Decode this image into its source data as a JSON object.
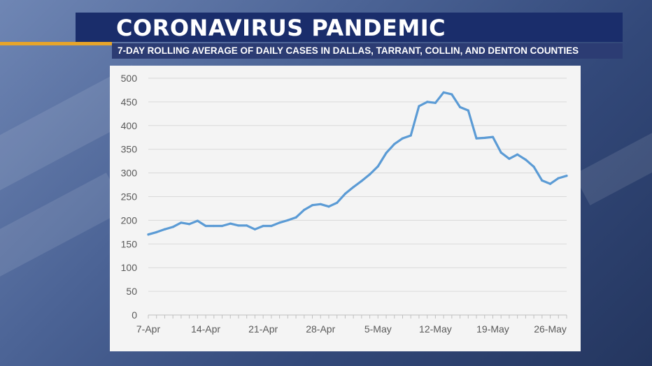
{
  "header": {
    "title": "CORONAVIRUS PANDEMIC",
    "subtitle": "7-DAY ROLLING AVERAGE OF DAILY CASES IN DALLAS, TARRANT, COLLIN, AND DENTON COUNTIES"
  },
  "colors": {
    "title_bar": "#1a2d6b",
    "accent": "#e7a52a",
    "line": "#5b9bd5"
  },
  "chart_data": {
    "type": "line",
    "title": "",
    "xlabel": "",
    "ylabel": "",
    "ylim": [
      0,
      500
    ],
    "y_ticks": [
      "0",
      "50",
      "100",
      "150",
      "200",
      "250",
      "300",
      "350",
      "400",
      "450",
      "500"
    ],
    "x_tick_labels": [
      "7-Apr",
      "14-Apr",
      "21-Apr",
      "28-Apr",
      "5-May",
      "12-May",
      "19-May",
      "26-May"
    ],
    "grid": true,
    "series": [
      {
        "x": [
          "2020-04-07",
          "2020-04-08",
          "2020-04-09",
          "2020-04-10",
          "2020-04-11",
          "2020-04-12",
          "2020-04-13",
          "2020-04-14",
          "2020-04-15",
          "2020-04-16",
          "2020-04-17",
          "2020-04-18",
          "2020-04-19",
          "2020-04-20",
          "2020-04-21",
          "2020-04-22",
          "2020-04-23",
          "2020-04-24",
          "2020-04-25",
          "2020-04-26",
          "2020-04-27",
          "2020-04-28",
          "2020-04-29",
          "2020-04-30",
          "2020-05-01",
          "2020-05-02",
          "2020-05-03",
          "2020-05-04",
          "2020-05-05",
          "2020-05-06",
          "2020-05-07",
          "2020-05-08",
          "2020-05-09",
          "2020-05-10",
          "2020-05-11",
          "2020-05-12",
          "2020-05-13",
          "2020-05-14",
          "2020-05-15",
          "2020-05-16",
          "2020-05-17",
          "2020-05-18",
          "2020-05-19",
          "2020-05-20",
          "2020-05-21",
          "2020-05-22",
          "2020-05-23",
          "2020-05-24",
          "2020-05-25",
          "2020-05-26",
          "2020-05-27",
          "2020-05-28"
        ],
        "values": [
          170,
          175,
          181,
          186,
          195,
          192,
          199,
          188,
          188,
          188,
          193,
          189,
          189,
          181,
          188,
          188,
          195,
          200,
          206,
          222,
          232,
          234,
          229,
          237,
          256,
          270,
          283,
          297,
          314,
          342,
          361,
          373,
          379,
          441,
          450,
          448,
          470,
          466,
          439,
          432,
          373,
          374,
          376,
          343,
          330,
          339,
          328,
          313,
          284,
          277,
          289,
          294
        ]
      }
    ]
  }
}
